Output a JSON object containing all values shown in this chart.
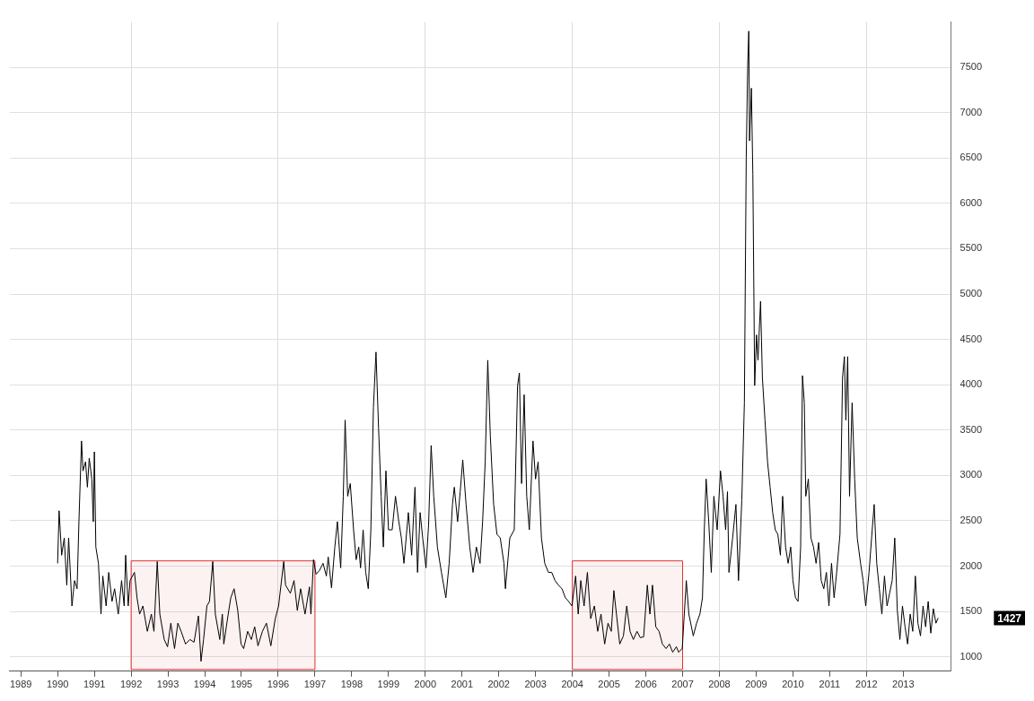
{
  "chart_data": {
    "type": "line",
    "xlim": [
      1988.7,
      2014.3
    ],
    "ylim": [
      840,
      8000
    ],
    "xticks": [
      1989,
      1990,
      1991,
      1992,
      1993,
      1994,
      1995,
      1996,
      1997,
      1998,
      1999,
      2000,
      2001,
      2002,
      2003,
      2004,
      2005,
      2006,
      2007,
      2008,
      2009,
      2010,
      2011,
      2012,
      2013
    ],
    "yticks": [
      1000,
      1500,
      2000,
      2500,
      3000,
      3500,
      4000,
      4500,
      5000,
      5500,
      6000,
      6500,
      7000,
      7500
    ],
    "grid": true,
    "legend": false,
    "marker": "none",
    "line_style": "solid",
    "bands": [
      {
        "axis": "x",
        "from": 1992,
        "to": 1997,
        "color": "#e03030"
      },
      {
        "axis": "x",
        "from": 2004,
        "to": 2007,
        "color": "#e03030"
      }
    ],
    "annotations": [
      "1427"
    ],
    "series": [
      {
        "color": "#000000",
        "x": [
          1990.0,
          1990.04,
          1990.11,
          1990.18,
          1990.25,
          1990.3,
          1990.39,
          1990.46,
          1990.53,
          1990.58,
          1990.65,
          1990.69,
          1990.76,
          1990.81,
          1990.86,
          1990.93,
          1990.97,
          1991.0,
          1991.04,
          1991.11,
          1991.18,
          1991.23,
          1991.32,
          1991.39,
          1991.48,
          1991.55,
          1991.65,
          1991.74,
          1991.81,
          1991.85,
          1991.92,
          1991.97,
          1992.09,
          1992.16,
          1992.23,
          1992.32,
          1992.44,
          1992.55,
          1992.62,
          1992.71,
          1992.78,
          1992.9,
          1992.99,
          1993.08,
          1993.18,
          1993.27,
          1993.36,
          1993.48,
          1993.6,
          1993.71,
          1993.83,
          1993.9,
          1993.97,
          1994.06,
          1994.13,
          1994.22,
          1994.29,
          1994.41,
          1994.48,
          1994.52,
          1994.64,
          1994.71,
          1994.8,
          1994.9,
          1994.99,
          1995.06,
          1995.17,
          1995.27,
          1995.36,
          1995.45,
          1995.57,
          1995.68,
          1995.8,
          1995.92,
          1996.01,
          1996.15,
          1996.2,
          1996.33,
          1996.43,
          1996.52,
          1996.61,
          1996.73,
          1996.85,
          1996.89,
          1996.96,
          1997.03,
          1997.12,
          1997.22,
          1997.31,
          1997.36,
          1997.45,
          1997.54,
          1997.61,
          1997.7,
          1997.77,
          1997.82,
          1997.89,
          1997.96,
          1998.05,
          1998.12,
          1998.19,
          1998.24,
          1998.31,
          1998.38,
          1998.45,
          1998.52,
          1998.59,
          1998.66,
          1998.73,
          1998.8,
          1998.86,
          1998.93,
          1999.0,
          1999.1,
          1999.19,
          1999.28,
          1999.35,
          1999.42,
          1999.54,
          1999.63,
          1999.72,
          1999.79,
          1999.86,
          1999.93,
          2000.02,
          2000.09,
          2000.16,
          2000.23,
          2000.33,
          2000.44,
          2000.56,
          2000.65,
          2000.74,
          2000.79,
          2000.88,
          2000.95,
          2001.02,
          2001.11,
          2001.21,
          2001.3,
          2001.39,
          2001.49,
          2001.56,
          2001.63,
          2001.7,
          2001.77,
          2001.86,
          2001.95,
          2002.04,
          2002.14,
          2002.18,
          2002.3,
          2002.42,
          2002.51,
          2002.56,
          2002.62,
          2002.69,
          2002.76,
          2002.83,
          2002.93,
          2003.0,
          2003.07,
          2003.16,
          2003.25,
          2003.35,
          2003.44,
          2003.53,
          2003.62,
          2003.72,
          2003.81,
          2003.9,
          2003.99,
          2004.09,
          2004.16,
          2004.23,
          2004.32,
          2004.41,
          2004.5,
          2004.6,
          2004.69,
          2004.78,
          2004.88,
          2004.97,
          2005.06,
          2005.13,
          2005.2,
          2005.29,
          2005.39,
          2005.48,
          2005.57,
          2005.66,
          2005.76,
          2005.85,
          2005.94,
          2006.04,
          2006.11,
          2006.18,
          2006.27,
          2006.36,
          2006.45,
          2006.55,
          2006.64,
          2006.73,
          2006.83,
          2006.89,
          2006.99,
          2007.1,
          2007.17,
          2007.29,
          2007.38,
          2007.47,
          2007.54,
          2007.59,
          2007.64,
          2007.71,
          2007.78,
          2007.85,
          2007.94,
          2008.03,
          2008.1,
          2008.17,
          2008.22,
          2008.26,
          2008.36,
          2008.45,
          2008.52,
          2008.61,
          2008.68,
          2008.73,
          2008.77,
          2008.8,
          2008.82,
          2008.87,
          2008.91,
          2008.96,
          2009.01,
          2009.05,
          2009.12,
          2009.17,
          2009.24,
          2009.31,
          2009.38,
          2009.45,
          2009.52,
          2009.59,
          2009.66,
          2009.72,
          2009.8,
          2009.87,
          2009.94,
          2010.0,
          2010.07,
          2010.14,
          2010.21,
          2010.26,
          2010.31,
          2010.35,
          2010.42,
          2010.49,
          2010.56,
          2010.63,
          2010.7,
          2010.77,
          2010.84,
          2010.91,
          2010.98,
          2011.05,
          2011.12,
          2011.19,
          2011.28,
          2011.35,
          2011.4,
          2011.44,
          2011.49,
          2011.54,
          2011.61,
          2011.68,
          2011.75,
          2011.84,
          2011.91,
          2011.98,
          2012.07,
          2012.14,
          2012.21,
          2012.28,
          2012.35,
          2012.42,
          2012.49,
          2012.56,
          2012.63,
          2012.7,
          2012.77,
          2012.84,
          2012.91,
          2012.98,
          2013.05,
          2013.12,
          2013.19,
          2013.26,
          2013.33,
          2013.4,
          2013.47,
          2013.54,
          2013.61,
          2013.68,
          2013.75,
          2013.82,
          2013.89,
          2013.95
        ],
        "values": [
          2030,
          2610,
          2120,
          2310,
          1790,
          2310,
          1560,
          1840,
          1750,
          2490,
          3380,
          3050,
          3150,
          2870,
          3190,
          2960,
          2490,
          3260,
          2210,
          2030,
          1470,
          1890,
          1560,
          1930,
          1610,
          1750,
          1470,
          1840,
          1560,
          2120,
          1560,
          1840,
          1930,
          1650,
          1470,
          1560,
          1280,
          1470,
          1280,
          2050,
          1470,
          1190,
          1110,
          1370,
          1090,
          1370,
          1280,
          1140,
          1190,
          1160,
          1450,
          950,
          1190,
          1560,
          1610,
          2050,
          1470,
          1190,
          1470,
          1140,
          1470,
          1650,
          1750,
          1510,
          1140,
          1090,
          1280,
          1190,
          1330,
          1120,
          1280,
          1370,
          1120,
          1420,
          1560,
          2050,
          1790,
          1700,
          1840,
          1510,
          1750,
          1470,
          1770,
          1470,
          2070,
          1910,
          1950,
          2030,
          1890,
          2100,
          1760,
          2210,
          2490,
          1980,
          2770,
          3610,
          2770,
          2910,
          2400,
          2070,
          2210,
          1980,
          2400,
          1930,
          1750,
          2400,
          3750,
          4360,
          3520,
          2770,
          2210,
          3050,
          2400,
          2400,
          2770,
          2490,
          2310,
          2030,
          2590,
          2120,
          2870,
          1930,
          2590,
          2310,
          1980,
          2450,
          3330,
          2770,
          2210,
          1930,
          1650,
          2030,
          2680,
          2870,
          2490,
          2820,
          3170,
          2680,
          2210,
          1930,
          2210,
          2030,
          2490,
          3150,
          4270,
          3430,
          2680,
          2350,
          2310,
          2030,
          1750,
          2310,
          2400,
          3990,
          4130,
          2910,
          3890,
          2770,
          2400,
          3380,
          2960,
          3150,
          2310,
          2030,
          1930,
          1930,
          1840,
          1790,
          1750,
          1650,
          1610,
          1560,
          1890,
          1470,
          1840,
          1560,
          1930,
          1420,
          1560,
          1280,
          1470,
          1140,
          1370,
          1280,
          1730,
          1470,
          1140,
          1230,
          1560,
          1280,
          1190,
          1280,
          1210,
          1220,
          1790,
          1470,
          1790,
          1330,
          1280,
          1140,
          1090,
          1140,
          1050,
          1110,
          1050,
          1090,
          1840,
          1470,
          1230,
          1370,
          1470,
          1650,
          2400,
          2960,
          2490,
          1930,
          2770,
          2400,
          3050,
          2770,
          2400,
          2820,
          1930,
          2310,
          2680,
          1840,
          2730,
          3800,
          6500,
          7530,
          7900,
          6690,
          7270,
          6320,
          3990,
          4550,
          4270,
          4920,
          4080,
          3610,
          3150,
          2870,
          2590,
          2400,
          2350,
          2120,
          2770,
          2210,
          2030,
          2210,
          1840,
          1650,
          1610,
          2210,
          4100,
          3800,
          2770,
          2960,
          2310,
          2210,
          2030,
          2260,
          1840,
          1750,
          1930,
          1560,
          2030,
          1650,
          1930,
          2350,
          4080,
          4310,
          3610,
          4310,
          2770,
          3800,
          2960,
          2310,
          2030,
          1840,
          1560,
          1930,
          2310,
          2680,
          2030,
          1750,
          1470,
          1890,
          1560,
          1700,
          1840,
          2310,
          1510,
          1190,
          1560,
          1330,
          1140,
          1470,
          1280,
          1890,
          1370,
          1230,
          1560,
          1330,
          1610,
          1260,
          1530,
          1370,
          1427
        ]
      }
    ]
  }
}
